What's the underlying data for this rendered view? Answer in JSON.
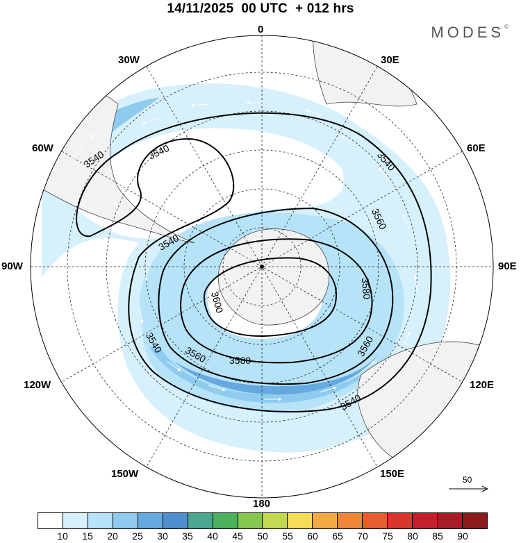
{
  "title": "14/11/2025  00 UTC  + 012 hrs",
  "brand": "MODES",
  "brand_mark": "©",
  "map": {
    "projection": "polar-stereographic-south",
    "longitude_labels": {
      "top": "0",
      "top_left": "30W",
      "top_right": "30E",
      "upper_left": "60W",
      "upper_right": "60E",
      "left": "90W",
      "right": "90E",
      "lower_left": "120W",
      "lower_right": "120E",
      "bottom_left": "150W",
      "bottom_right": "150E",
      "bottom": "180"
    },
    "contour_labels": {
      "c1": "3540",
      "c2": "3540",
      "c3": "3540",
      "c4": "3540",
      "c5": "3540",
      "c6": "3540",
      "c7": "3560",
      "c8": "3560",
      "c9": "3560",
      "c10": "3580",
      "c11": "3580",
      "c12": "3600"
    },
    "vector_reference": "50"
  },
  "colorbar": {
    "colors": [
      "#ffffff",
      "#d6f0fc",
      "#b7e3f8",
      "#8ecbef",
      "#65a9e0",
      "#4f8fcf",
      "#4aa890",
      "#49b25a",
      "#86c84e",
      "#c2d94f",
      "#f5dd55",
      "#f2aa45",
      "#ee8637",
      "#e85c2d",
      "#dc3529",
      "#c4202b",
      "#a71c25",
      "#8a1a1c"
    ],
    "ticks": [
      "10",
      "15",
      "20",
      "25",
      "30",
      "35",
      "40",
      "45",
      "50",
      "55",
      "60",
      "65",
      "70",
      "75",
      "80",
      "85",
      "90"
    ]
  }
}
